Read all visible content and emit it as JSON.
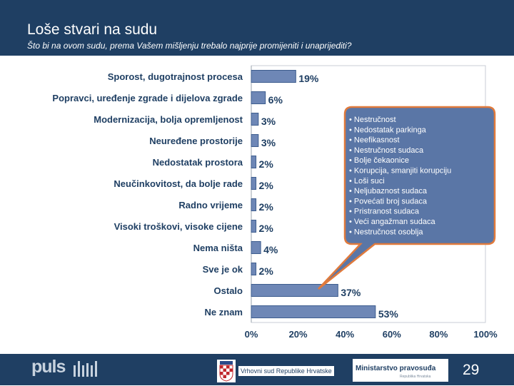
{
  "header": {
    "title": "Loše stvari na sudu",
    "subtitle": "Što bi na ovom sudu, prema Vašem mišljenju trebalo najprije promijeniti i unaprijediti?"
  },
  "footer": {
    "logo_text": "puls",
    "court_name": "Vrhovni sud Republike Hrvatske",
    "ministry_name": "Ministarstvo pravosuđa",
    "ministry_sub": "Republika Hrvatska",
    "page_number": "29"
  },
  "colors": {
    "header_bg": "#1f3f63",
    "bar_fill": "#6e87b6",
    "bar_stroke": "#3d5d8e",
    "text": "#1f3f63",
    "callout_fill": "#5a76a6",
    "callout_border": "#e07a3c"
  },
  "chart_data": {
    "type": "bar",
    "orientation": "horizontal",
    "categories": [
      "Sporost, dugotrajnost procesa",
      "Popravci, uređenje zgrade i dijelova zgrade",
      "Modernizacija, bolja opremljenost",
      "Neuređene prostorije",
      "Nedostatak prostora",
      "Neučinkovitost, da bolje rade",
      "Radno vrijeme",
      "Visoki troškovi, visoke cijene",
      "Nema ništa",
      "Sve je ok",
      "Ostalo",
      "Ne znam"
    ],
    "values": [
      19,
      6,
      3,
      3,
      2,
      2,
      2,
      2,
      4,
      2,
      37,
      53
    ],
    "value_labels": [
      "19%",
      "6%",
      "3%",
      "3%",
      "2%",
      "2%",
      "2%",
      "2%",
      "4%",
      "2%",
      "37%",
      "53%"
    ],
    "xlim": [
      0,
      100
    ],
    "x_ticks": [
      "0%",
      "20%",
      "40%",
      "60%",
      "80%",
      "100%"
    ],
    "grid": false,
    "annotation": {
      "points_to": "Ostalo",
      "items": [
        "• Nestručnost",
        "• Nedostatak parkinga",
        "• Neefikasnost",
        "• Nestručnost sudaca",
        "• Bolje čekaonice",
        "• Korupcija, smanjiti korupciju",
        "• Loši suci",
        "• Neljubaznost sudaca",
        "• Povećati broj sudaca",
        "• Pristranost sudaca",
        "• Veći angažman sudaca",
        "• Nestručnost osoblja"
      ]
    }
  }
}
